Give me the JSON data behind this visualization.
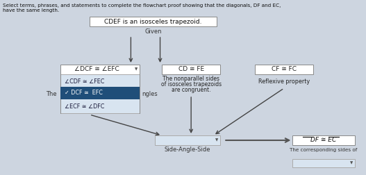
{
  "bg_color": "#cdd5e0",
  "title_line1": "Select terms, phrases, and statements to complete the flowchart proof showing that the diagonals, DF and EC,",
  "title_line2": "have the same length.",
  "top_box_text": "CDEF is an isosceles trapezoid.",
  "given_label": "Given",
  "box1_text": "∠DCF ≅ ∠EFC",
  "box1_dropdown_item1": "∠CDF ≅ ∠FEC",
  "box1_dropdown_item2": "DCF ≅  EFC",
  "box1_dropdown_item3": "∠ECF ≅ ∠DFC",
  "box1_left_label": "The",
  "box1_right_label": "ngles",
  "box2_text": "CD ≅ FE",
  "box2_label1": "The nonparallel sides",
  "box2_label2": "of isosceles trapezoids",
  "box2_label3": "are congruent.",
  "box3_text": "CF ≅ FC",
  "box3_label": "Reflexive property",
  "bottom_label": "Side-Angle-Side",
  "result_box_text": "DF ≅ EC",
  "result_label": "The corresponding sides of",
  "arrow_color": "#444444",
  "box_bg": "#ffffff",
  "box_border": "#999999",
  "dropdown_bg": "#d8e4f0",
  "dropdown_selected_bg": "#1f4e79",
  "dropdown_selected_text": "#ffffff",
  "dropdown_text": "#1a1a3a",
  "checkmark_color": "#ffffff"
}
